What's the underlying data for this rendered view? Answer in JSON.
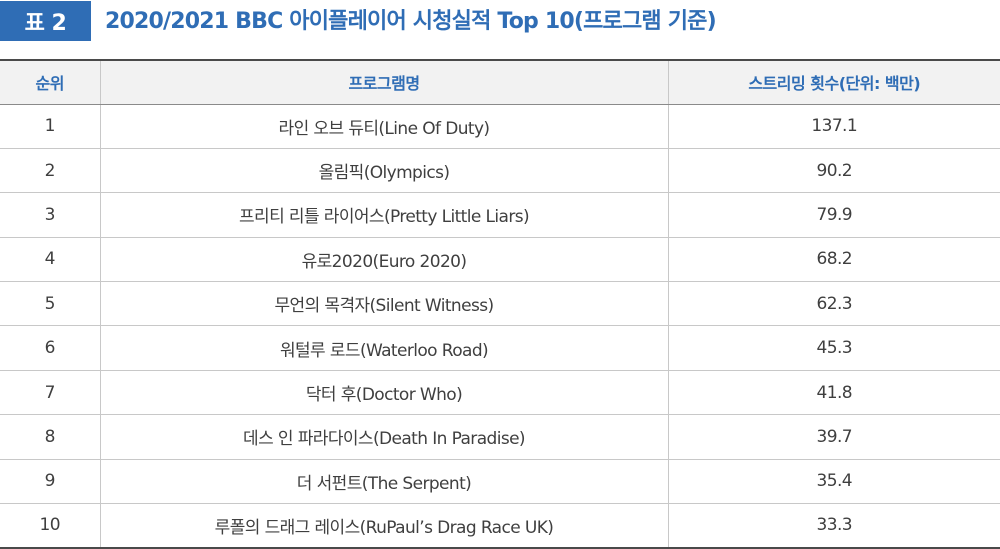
{
  "header": {
    "badge": "표 2",
    "title": "2020/2021 BBC 아이플레이어 시청실적 Top 10(프로그램 기준)"
  },
  "table": {
    "columns": [
      "순위",
      "프로그램명",
      "스트리밍 횟수(단위: 백만)"
    ],
    "rows": [
      [
        "1",
        "라인 오브 듀티(Line Of Duty)",
        "137.1"
      ],
      [
        "2",
        "올림픽(Olympics)",
        "90.2"
      ],
      [
        "3",
        "프리티 리틀 라이어스(Pretty Little Liars)",
        "79.9"
      ],
      [
        "4",
        "유로2020(Euro 2020)",
        "68.2"
      ],
      [
        "5",
        "무언의 목격자(Silent Witness)",
        "62.3"
      ],
      [
        "6",
        "워털루 로드(Waterloo Road)",
        "45.3"
      ],
      [
        "7",
        "닥터 후(Doctor Who)",
        "41.8"
      ],
      [
        "8",
        "데스 인 파라다이스(Death In Paradise)",
        "39.7"
      ],
      [
        "9",
        "더 서펀트(The Serpent)",
        "35.4"
      ],
      [
        "10",
        "루폴의 드래그 레이스(RuPaul’s Drag Race UK)",
        "33.3"
      ]
    ]
  },
  "colors": {
    "accent": "#2f6db5",
    "header_bg": "#f2f2f2",
    "text": "#3f3f3f"
  }
}
